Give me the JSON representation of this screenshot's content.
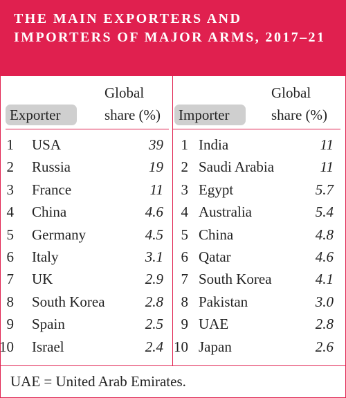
{
  "title": "THE MAIN EXPORTERS AND IMPORTERS OF MAJOR ARMS, 2017–21",
  "exporters": {
    "col_label": "Exporter",
    "share_label_line1": "Global",
    "share_label_line2": "share (%)",
    "rows": [
      {
        "rank": "1",
        "name": "USA",
        "share": "39"
      },
      {
        "rank": "2",
        "name": "Russia",
        "share": "19"
      },
      {
        "rank": "3",
        "name": "France",
        "share": "11"
      },
      {
        "rank": "4",
        "name": "China",
        "share": "4.6"
      },
      {
        "rank": "5",
        "name": "Germany",
        "share": "4.5"
      },
      {
        "rank": "6",
        "name": "Italy",
        "share": "3.1"
      },
      {
        "rank": "7",
        "name": "UK",
        "share": "2.9"
      },
      {
        "rank": "8",
        "name": "South Korea",
        "share": "2.8"
      },
      {
        "rank": "9",
        "name": "Spain",
        "share": "2.5"
      },
      {
        "rank": "10",
        "name": "Israel",
        "share": "2.4"
      }
    ]
  },
  "importers": {
    "col_label": "Importer",
    "share_label_line1": "Global",
    "share_label_line2": "share (%)",
    "rows": [
      {
        "rank": "1",
        "name": "India",
        "share": "11"
      },
      {
        "rank": "2",
        "name": "Saudi Arabia",
        "share": "11"
      },
      {
        "rank": "3",
        "name": "Egypt",
        "share": "5.7"
      },
      {
        "rank": "4",
        "name": "Australia",
        "share": "5.4"
      },
      {
        "rank": "5",
        "name": "China",
        "share": "4.8"
      },
      {
        "rank": "6",
        "name": "Qatar",
        "share": "4.6"
      },
      {
        "rank": "7",
        "name": "South Korea",
        "share": "4.1"
      },
      {
        "rank": "8",
        "name": "Pakistan",
        "share": "3.0"
      },
      {
        "rank": "9",
        "name": "UAE",
        "share": "2.8"
      },
      {
        "rank": "10",
        "name": "Japan",
        "share": "2.6"
      }
    ]
  },
  "footnote": "UAE = United Arab Emirates.",
  "colors": {
    "accent": "#e0204f",
    "header_pill": "#cfcfcf",
    "text": "#222222"
  }
}
